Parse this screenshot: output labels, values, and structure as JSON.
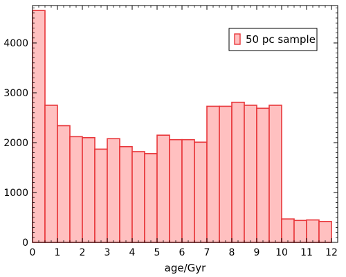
{
  "chart_data": {
    "type": "bar",
    "xlabel": "age/Gyr",
    "ylabel": "",
    "xlim": [
      0,
      12.25
    ],
    "ylim": [
      0,
      4750
    ],
    "x_ticks": [
      "0",
      "1",
      "2",
      "3",
      "4",
      "5",
      "6",
      "7",
      "8",
      "9",
      "10",
      "11",
      "12"
    ],
    "y_ticks": [
      "0",
      "1000",
      "2000",
      "3000",
      "4000"
    ],
    "bin_width": 0.5,
    "bin_starts": [
      0,
      0.5,
      1,
      1.5,
      2,
      2.5,
      3,
      3.5,
      4,
      4.5,
      5,
      5.5,
      6,
      6.5,
      7,
      7.5,
      8,
      8.5,
      9,
      9.5,
      10,
      10.5,
      11,
      11.5
    ],
    "series": [
      {
        "name": "50 pc sample",
        "values": [
          4650,
          2750,
          2340,
          2120,
          2100,
          1870,
          2080,
          1920,
          1820,
          1780,
          2150,
          2060,
          2060,
          2010,
          2730,
          2730,
          2810,
          2750,
          2690,
          2750,
          470,
          440,
          450,
          420
        ]
      }
    ],
    "legend_position": "upper-right",
    "grid": false,
    "colors": {
      "fill": "#ffc0c0",
      "edge": "#e8363a"
    }
  }
}
